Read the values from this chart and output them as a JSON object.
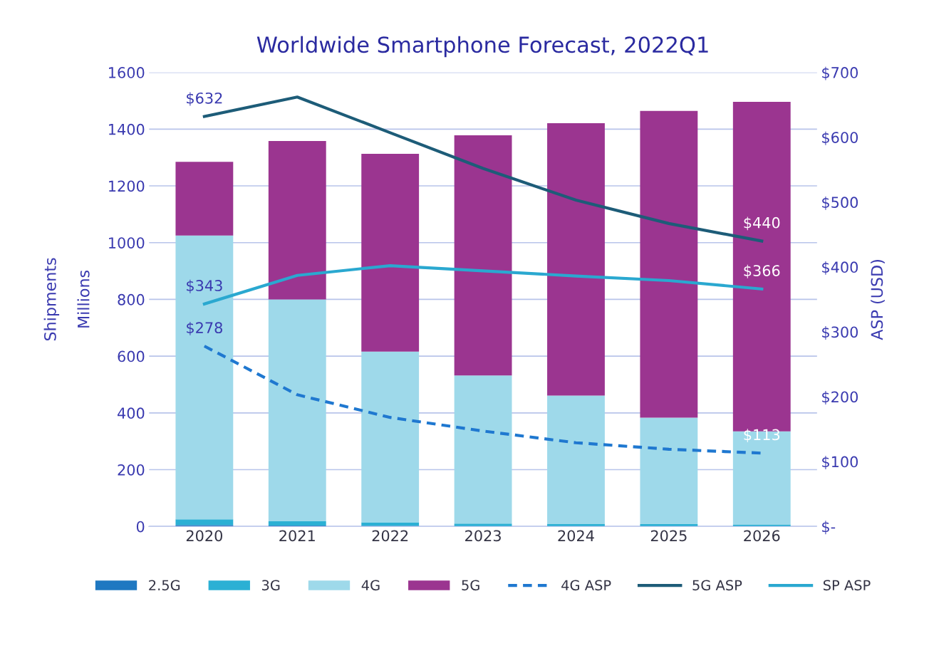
{
  "chart_data": {
    "type": "bar",
    "title": "Worldwide Smartphone Forecast, 2022Q1",
    "xlabel": null,
    "ylabel": "Shipments\nMillions",
    "y2label": "ASP (USD)",
    "categories": [
      "2020",
      "2021",
      "2022",
      "2023",
      "2024",
      "2025",
      "2026"
    ],
    "stacked": true,
    "series": [
      {
        "name": "2.5G",
        "color": "#1f78c1",
        "values": [
          5,
          3,
          2,
          null,
          null,
          null,
          null
        ]
      },
      {
        "name": "3G",
        "color": "#2bb0d4",
        "values": [
          20,
          15,
          12,
          10,
          9,
          8,
          7
        ]
      },
      {
        "name": "4G",
        "color": "#9ed9ea",
        "values": [
          1000,
          782,
          602,
          522,
          452,
          375,
          328
        ]
      },
      {
        "name": "5G",
        "color": "#9b3590",
        "values": [
          260,
          558,
          697,
          846,
          960,
          1081,
          1161
        ]
      },
      {
        "name": "4G ASP",
        "type": "line",
        "axis": "y2",
        "line_style": "dashed",
        "color": "#1f78d0",
        "values": [
          278,
          203,
          168,
          147,
          129,
          119,
          113
        ],
        "value_labels": [
          "$278",
          null,
          null,
          null,
          null,
          null,
          "$113"
        ]
      },
      {
        "name": "5G ASP",
        "type": "line",
        "axis": "y2",
        "line_style": "solid",
        "color": "#1d5c78",
        "values": [
          632,
          662,
          607,
          552,
          503,
          467,
          440
        ],
        "value_labels": [
          "$632",
          null,
          null,
          null,
          null,
          null,
          "$440"
        ]
      },
      {
        "name": "SP ASP",
        "type": "line",
        "axis": "y2",
        "line_style": "solid",
        "color": "#2aa8d0",
        "values": [
          343,
          387,
          402,
          394,
          386,
          379,
          366
        ],
        "value_labels": [
          "$343",
          null,
          null,
          null,
          null,
          null,
          "$366"
        ]
      }
    ],
    "ylim": [
      0,
      1600
    ],
    "yticks": [
      0,
      200,
      400,
      600,
      800,
      1000,
      1200,
      1400,
      1600
    ],
    "y2lim": [
      0,
      700
    ],
    "y2ticks": [
      {
        "value": 0,
        "label": "$-"
      },
      {
        "value": 100,
        "label": "$100"
      },
      {
        "value": 200,
        "label": "$200"
      },
      {
        "value": 300,
        "label": "$300"
      },
      {
        "value": 400,
        "label": "$400"
      },
      {
        "value": 500,
        "label": "$500"
      },
      {
        "value": 600,
        "label": "$600"
      },
      {
        "value": 700,
        "label": "$700"
      }
    ],
    "grid": "y",
    "legend": "bottom",
    "marker": "none"
  }
}
